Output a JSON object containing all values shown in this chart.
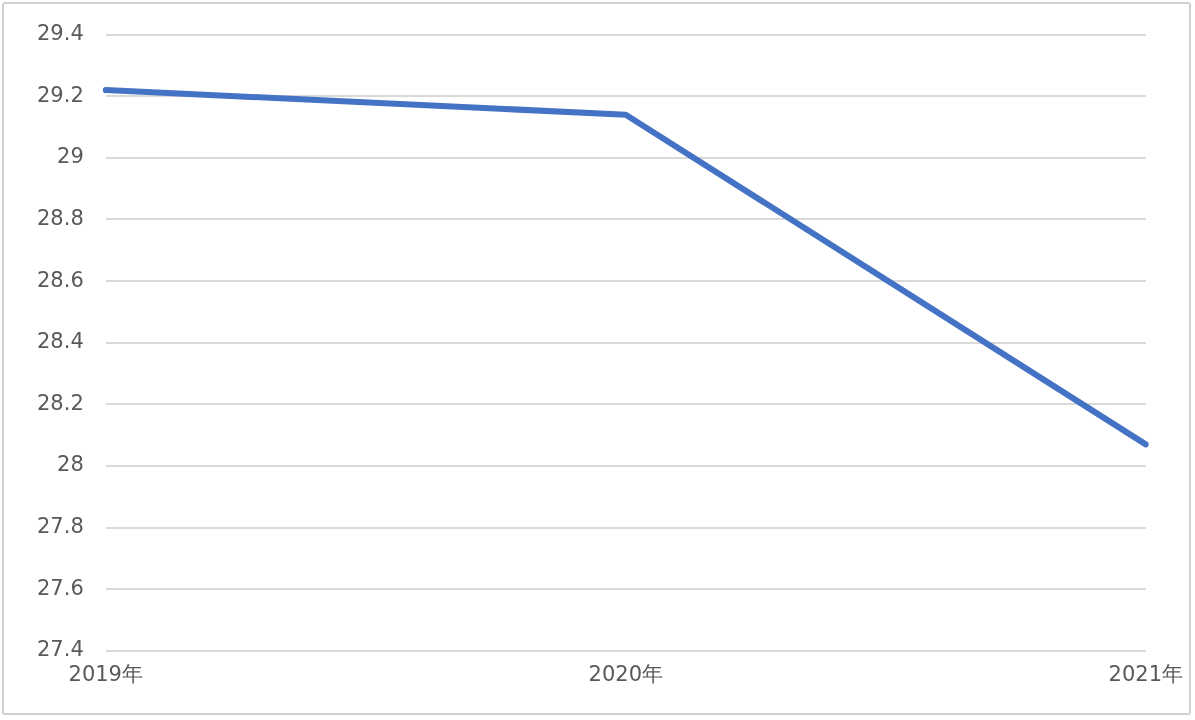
{
  "chart_data": {
    "type": "line",
    "categories": [
      "2019年",
      "2020年",
      "2021年"
    ],
    "series": [
      {
        "color": "#4472c4",
        "values": [
          29.22,
          29.14,
          28.07
        ]
      }
    ],
    "ylim": [
      27.4,
      29.4
    ],
    "yticks": [
      27.4,
      27.6,
      27.8,
      28,
      28.2,
      28.4,
      28.6,
      28.8,
      29,
      29.2,
      29.4
    ],
    "grid": "y",
    "legend": false,
    "marker": "none",
    "line_style": "solid"
  }
}
